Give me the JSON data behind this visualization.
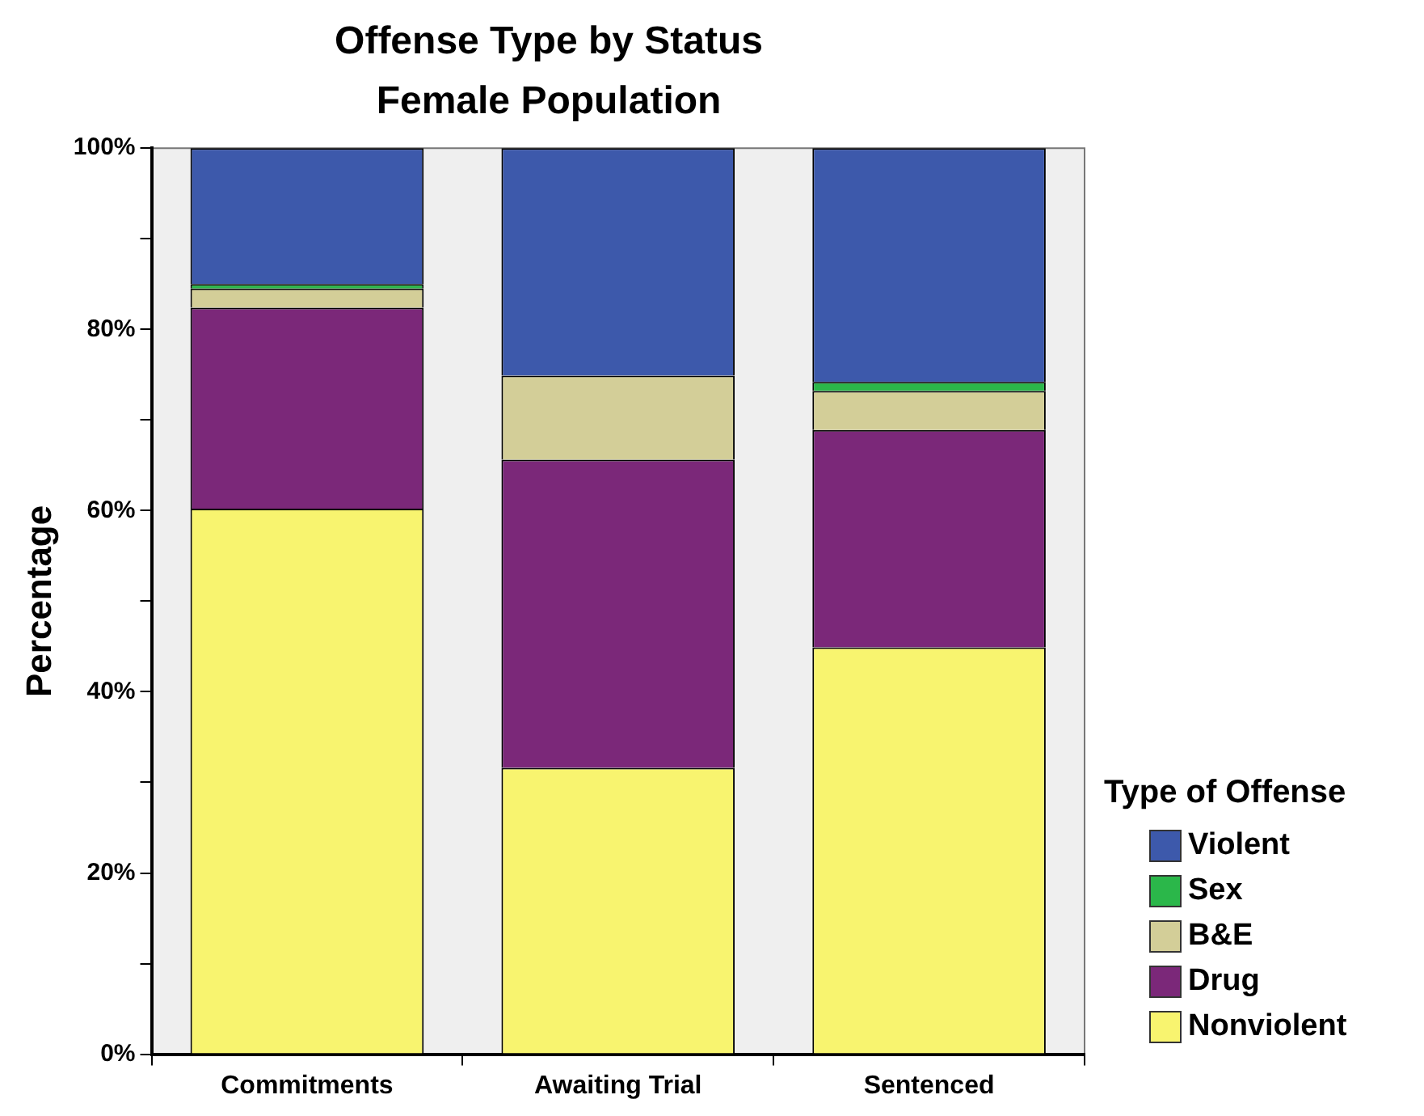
{
  "chart_data": {
    "type": "bar",
    "title": "Offense Type by Status",
    "subtitle": "Female Population",
    "ylabel": "Percentage",
    "legend_title": "Type of Offense",
    "categories": [
      "Commitments",
      "Awaiting Trial",
      "Sentenced"
    ],
    "stacked": true,
    "series": [
      {
        "name": "Nonviolent",
        "color": "#f8f46f",
        "values": [
          60.2,
          31.6,
          44.9
        ]
      },
      {
        "name": "Drug",
        "color": "#7b2879",
        "values": [
          22.2,
          34.0,
          24.0
        ]
      },
      {
        "name": "B&E",
        "color": "#d3ce98",
        "values": [
          2.1,
          9.3,
          4.3
        ]
      },
      {
        "name": "Sex",
        "color": "#2bb74a",
        "values": [
          0.5,
          null,
          1.0
        ]
      },
      {
        "name": "Violent",
        "color": "#3d59ab",
        "values": [
          15.0,
          25.1,
          25.8
        ]
      }
    ],
    "ylim": [
      0,
      100
    ],
    "yticks": [
      {
        "value": 0,
        "label": "0%"
      },
      {
        "value": 10,
        "label": null
      },
      {
        "value": 20,
        "label": "20%"
      },
      {
        "value": 30,
        "label": null
      },
      {
        "value": 40,
        "label": "40%"
      },
      {
        "value": 50,
        "label": null
      },
      {
        "value": 60,
        "label": "60%"
      },
      {
        "value": 70,
        "label": null
      },
      {
        "value": 80,
        "label": "80%"
      },
      {
        "value": 90,
        "label": null
      },
      {
        "value": 100,
        "label": "100%"
      }
    ],
    "grid": false,
    "legend": "bottom right"
  }
}
